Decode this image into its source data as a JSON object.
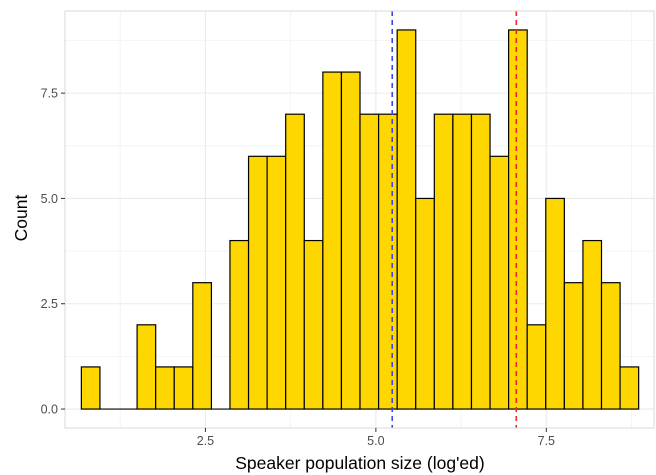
{
  "chart_data": {
    "type": "bar",
    "title": "",
    "xlabel": "Speaker population size (log'ed)",
    "ylabel": "Count",
    "bin_width": 0.2725,
    "bin_start": 0.68,
    "bin_counts": [
      1,
      0,
      0,
      2,
      1,
      1,
      3,
      0,
      4,
      6,
      6,
      7,
      4,
      8,
      8,
      7,
      7,
      9,
      5,
      7,
      7,
      7,
      6,
      9,
      2,
      5,
      3,
      4,
      3,
      1
    ],
    "xlim": [
      0.44,
      9.08
    ],
    "ylim": [
      -0.45,
      9.45
    ],
    "x_ticks": [
      {
        "value": 2.5,
        "label": "2.5"
      },
      {
        "value": 5.0,
        "label": "5.0"
      },
      {
        "value": 7.5,
        "label": "7.5"
      }
    ],
    "y_ticks": [
      {
        "value": 0.0,
        "label": "0.0"
      },
      {
        "value": 2.5,
        "label": "2.5"
      },
      {
        "value": 5.0,
        "label": "5.0"
      },
      {
        "value": 7.5,
        "label": "7.5"
      }
    ],
    "reference_lines": [
      {
        "x": 5.24,
        "color": "#3b46e8",
        "style": "dashed"
      },
      {
        "x": 7.06,
        "color": "#e8282a",
        "style": "dashed"
      }
    ],
    "bar_fill": "#ffd700",
    "bar_stroke": "#000000",
    "grid": true,
    "panel_border": true,
    "legend": "none"
  }
}
